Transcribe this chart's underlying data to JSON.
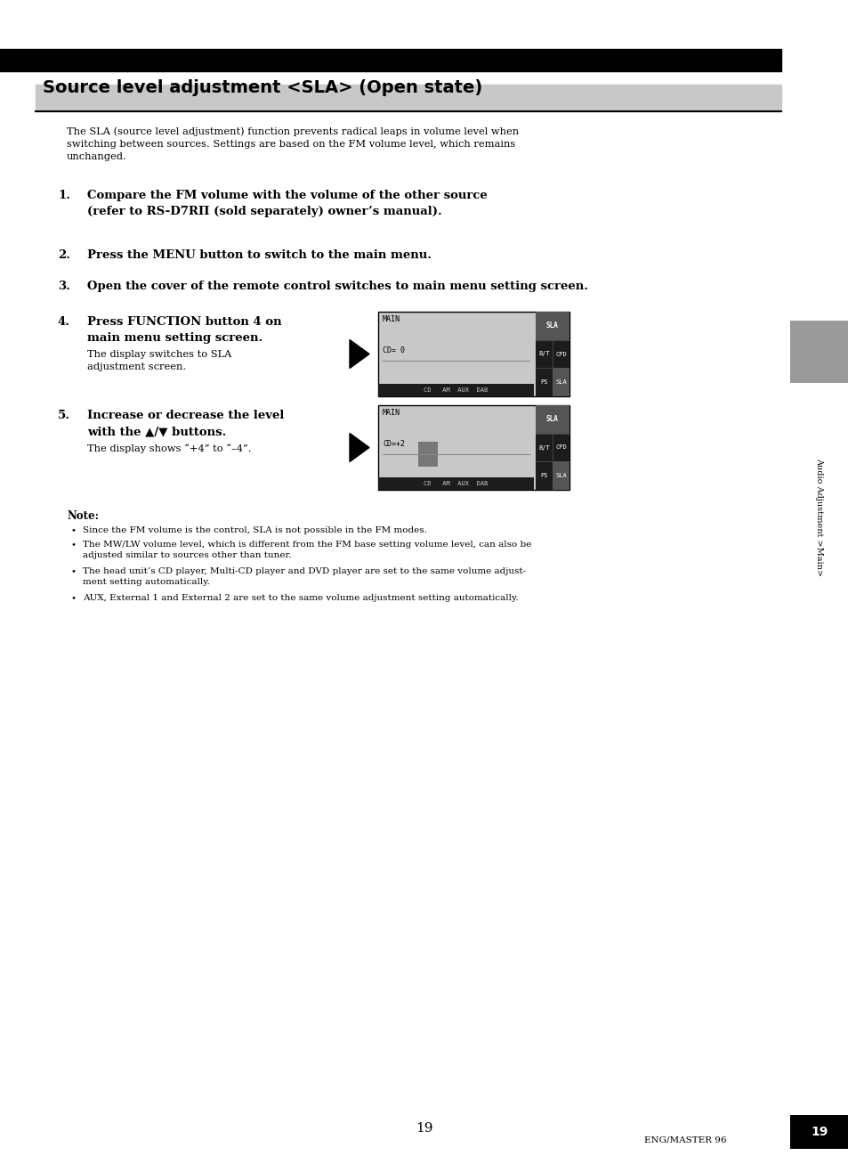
{
  "page_bg": "#ffffff",
  "top_bar_color": "#000000",
  "title": "Source level adjustment <SLA> (Open state)",
  "title_bg": "#c8c8c8",
  "sidebar_label": "Audio Adjustment >Main>",
  "page_number": "19",
  "footer_text": "ENG/MASTER 96",
  "intro_text": "The SLA (source level adjustment) function prevents radical leaps in volume level when\nswitching between sources. Settings are based on the FM volume level, which remains\nunchanged.",
  "step1_num": "1.",
  "step1_bold": "Compare the FM volume with the volume of the other source\n(refer to RS-D7RΠ (sold separately) owner’s manual).",
  "step2_num": "2.",
  "step2_bold": "Press the MENU button to switch to the main menu.",
  "step3_num": "3.",
  "step3_bold": "Open the cover of the remote control switches to main menu setting screen.",
  "step4_num": "4.",
  "step4_bold": "Press FUNCTION button 4 on\nmain menu setting screen.",
  "step4_norm": "The display switches to SLA\nadjustment screen.",
  "step5_num": "5.",
  "step5_bold": "Increase or decrease the level\nwith the ▲/▼ buttons.",
  "step5_norm": "The display shows “+4” to “–4”.",
  "note_title": "Note:",
  "bullet1": "Since the FM volume is the control, SLA is not possible in the FM modes.",
  "bullet2": "The MW/LW volume level, which is different from the FM base setting volume level, can also be\nadjusted similar to sources other than tuner.",
  "bullet3": "The head unit’s CD player, Multi-CD player and DVD player are set to the same volume adjust-\nment setting automatically.",
  "bullet4": "AUX, External 1 and External 2 are set to the same volume adjustment setting automatically.",
  "disp1_cd": "CD= 0",
  "disp2_cd": "CD=+2",
  "disp_main": "MAIN",
  "disp_bottom": "CD   AM  AUX  DAB"
}
